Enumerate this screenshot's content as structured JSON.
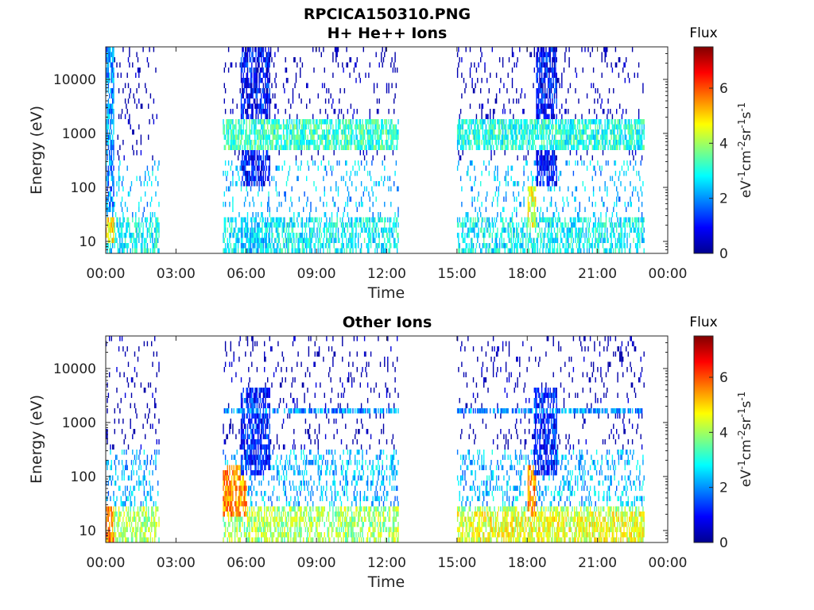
{
  "figure": {
    "filename_title": "RPCICA150310.PNG"
  },
  "chart_data": [
    {
      "type": "heatmap",
      "title": "H+ He++ Ions",
      "xlabel": "Time",
      "ylabel": "Energy (eV)",
      "yscale": "log",
      "xlim": [
        "00:00",
        "24:00"
      ],
      "ylim": [
        6,
        40000
      ],
      "x_ticks": [
        "00:00",
        "03:00",
        "06:00",
        "09:00",
        "12:00",
        "15:00",
        "18:00",
        "21:00",
        "00:00"
      ],
      "y_ticks": [
        10,
        100,
        1000,
        10000
      ],
      "y_tick_labels": [
        "10",
        "100",
        "1000",
        "10000"
      ],
      "data_segments": [
        {
          "start": "00:00",
          "end": "02:15"
        },
        {
          "start": "05:00",
          "end": "12:30"
        },
        {
          "start": "15:00",
          "end": "23:00"
        }
      ],
      "features": [
        {
          "time": "00:00-00:20",
          "energy": [
            10,
            40000
          ],
          "flux": 2.0
        },
        {
          "time": "00:00-00:20",
          "energy": [
            10,
            30
          ],
          "flux": 4.8
        },
        {
          "time": "05:45-07:00",
          "energy": [
            100,
            40000
          ],
          "flux": 1.0
        },
        {
          "time": "05:45-07:00",
          "energy": [
            6,
            25
          ],
          "flux": 2.5
        },
        {
          "time": "05:00-12:30",
          "energy": [
            500,
            1800
          ],
          "flux": 3.2
        },
        {
          "time": "18:20-19:15",
          "energy": [
            100,
            40000
          ],
          "flux": 1.0
        },
        {
          "time": "18:00-18:20",
          "energy": [
            20,
            100
          ],
          "flux": 4.5
        },
        {
          "time": "15:00-23:00",
          "energy": [
            500,
            1800
          ],
          "flux": 3.0
        }
      ],
      "colorbar": {
        "label": "Flux",
        "unit": "eV-1cm-2sr-1s-1",
        "range": [
          0,
          7.5
        ],
        "ticks": [
          0,
          2,
          4,
          6
        ]
      }
    },
    {
      "type": "heatmap",
      "title": "Other Ions",
      "xlabel": "Time",
      "ylabel": "Energy (eV)",
      "yscale": "log",
      "xlim": [
        "00:00",
        "24:00"
      ],
      "ylim": [
        6,
        40000
      ],
      "x_ticks": [
        "00:00",
        "03:00",
        "06:00",
        "09:00",
        "12:00",
        "15:00",
        "18:00",
        "21:00",
        "00:00"
      ],
      "y_ticks": [
        10,
        100,
        1000,
        10000
      ],
      "y_tick_labels": [
        "10",
        "100",
        "1000",
        "10000"
      ],
      "data_segments": [
        {
          "start": "00:00",
          "end": "02:15"
        },
        {
          "start": "05:00",
          "end": "12:30"
        },
        {
          "start": "15:00",
          "end": "23:00"
        }
      ],
      "features": [
        {
          "time": "00:00-00:20",
          "energy": [
            6,
            30
          ],
          "flux": 5.5
        },
        {
          "time": "05:00-06:00",
          "energy": [
            20,
            150
          ],
          "flux": 5.5
        },
        {
          "time": "05:45-07:00",
          "energy": [
            100,
            4000
          ],
          "flux": 1.2
        },
        {
          "time": "05:00-12:30",
          "energy": [
            1400,
            2000
          ],
          "flux": 2.0
        },
        {
          "time": "15:00-23:00",
          "energy": [
            6,
            25
          ],
          "flux": 4.5
        },
        {
          "time": "18:00-18:20",
          "energy": [
            20,
            150
          ],
          "flux": 5.5
        },
        {
          "time": "18:15-19:15",
          "energy": [
            100,
            4000
          ],
          "flux": 1.2
        },
        {
          "time": "15:00-23:00",
          "energy": [
            1400,
            2000
          ],
          "flux": 2.0
        }
      ],
      "colorbar": {
        "label": "Flux",
        "unit": "eV-1cm-2sr-1s-1",
        "range": [
          0,
          7.5
        ],
        "ticks": [
          0,
          2,
          4,
          6
        ]
      }
    }
  ]
}
